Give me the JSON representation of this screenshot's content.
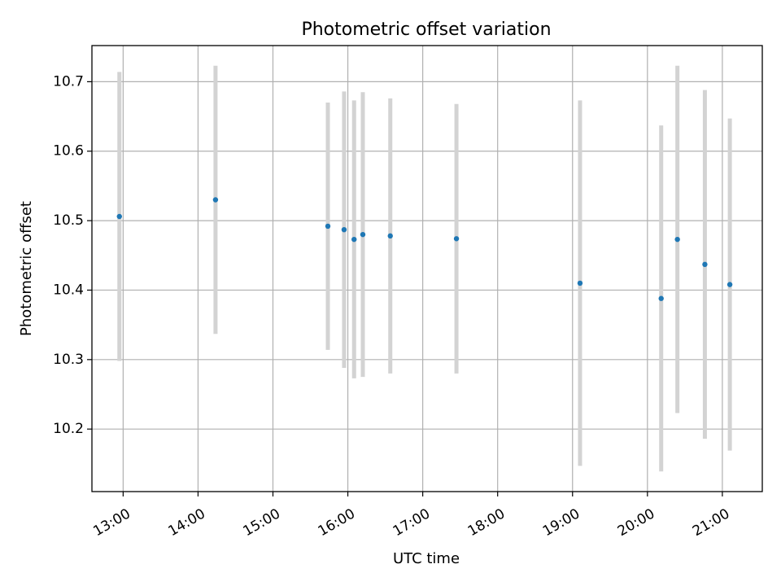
{
  "chart_data": {
    "type": "scatter",
    "title": "Photometric offset variation",
    "xlabel": "UTC time",
    "ylabel": "Photometric offset",
    "grid": true,
    "x_tick_labels": [
      "13:00",
      "14:00",
      "15:00",
      "16:00",
      "17:00",
      "18:00",
      "19:00",
      "20:00",
      "21:00"
    ],
    "x_tick_values": [
      "13:00",
      "14:00",
      "15:00",
      "16:00",
      "17:00",
      "18:00",
      "19:00",
      "20:00",
      "21:00"
    ],
    "y_ticks": [
      10.2,
      10.3,
      10.4,
      10.5,
      10.6,
      10.7
    ],
    "y_tick_labels": [
      "10.2",
      "10.3",
      "10.4",
      "10.5",
      "10.6",
      "10.7"
    ],
    "xlim": [
      "12:35",
      "21:32"
    ],
    "ylim": [
      10.11,
      10.752
    ],
    "colors": {
      "point": "#1f77b4",
      "errorbar": "#d3d3d3"
    },
    "series": [
      {
        "x": [
          "12:57",
          "14:14",
          "15:44",
          "15:57",
          "16:05",
          "16:12",
          "16:34",
          "17:27",
          "19:06",
          "20:11",
          "20:24",
          "20:46",
          "21:06"
        ],
        "y": [
          10.506,
          10.53,
          10.492,
          10.487,
          10.473,
          10.48,
          10.478,
          10.474,
          10.41,
          10.388,
          10.473,
          10.437,
          10.408
        ],
        "error": [
          0.208,
          0.193,
          0.178,
          0.199,
          0.2,
          0.205,
          0.198,
          0.194,
          0.263,
          0.249,
          0.25,
          0.251,
          0.239
        ]
      }
    ]
  }
}
